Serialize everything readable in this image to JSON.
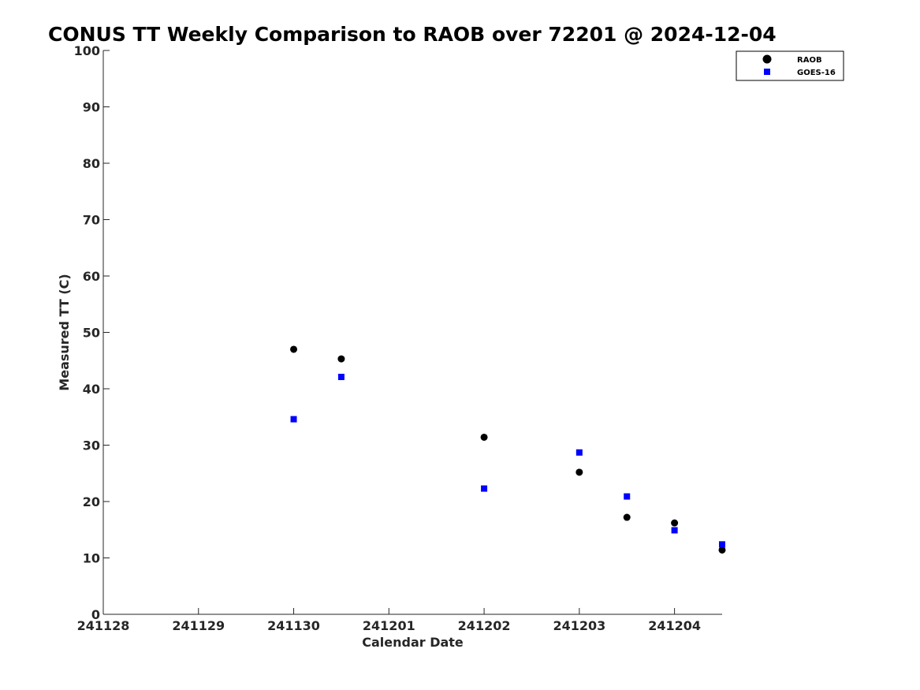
{
  "chart_data": {
    "type": "scatter",
    "title": "CONUS TT Weekly Comparison to RAOB over 72201 @ 2024-12-04",
    "xlabel": "Calendar Date",
    "ylabel": "Measured TT (C)",
    "x_ticks": [
      {
        "value": 0,
        "label": "241128"
      },
      {
        "value": 1,
        "label": "241129"
      },
      {
        "value": 2,
        "label": "241130"
      },
      {
        "value": 3,
        "label": "241201"
      },
      {
        "value": 4,
        "label": "241202"
      },
      {
        "value": 5,
        "label": "241203"
      },
      {
        "value": 6,
        "label": "241204"
      }
    ],
    "xlim": [
      0,
      6.5
    ],
    "ylim": [
      0,
      100
    ],
    "y_ticks": [
      0,
      10,
      20,
      30,
      40,
      50,
      60,
      70,
      80,
      90,
      100
    ],
    "grid": false,
    "legend_position": "top-right",
    "series": [
      {
        "name": "RAOB",
        "marker": "circle",
        "color": "#000000",
        "points": [
          {
            "x": 2.0,
            "y": 47.0
          },
          {
            "x": 2.5,
            "y": 45.3
          },
          {
            "x": 4.0,
            "y": 31.4
          },
          {
            "x": 5.0,
            "y": 25.2
          },
          {
            "x": 5.5,
            "y": 17.2
          },
          {
            "x": 6.0,
            "y": 16.2
          },
          {
            "x": 6.5,
            "y": 11.4
          }
        ]
      },
      {
        "name": "GOES-16",
        "marker": "square",
        "color": "#0000ff",
        "points": [
          {
            "x": 2.0,
            "y": 34.6
          },
          {
            "x": 2.5,
            "y": 42.1
          },
          {
            "x": 4.0,
            "y": 22.3
          },
          {
            "x": 5.0,
            "y": 28.7
          },
          {
            "x": 5.5,
            "y": 20.9
          },
          {
            "x": 6.0,
            "y": 14.9
          },
          {
            "x": 6.5,
            "y": 12.4
          }
        ]
      }
    ]
  }
}
